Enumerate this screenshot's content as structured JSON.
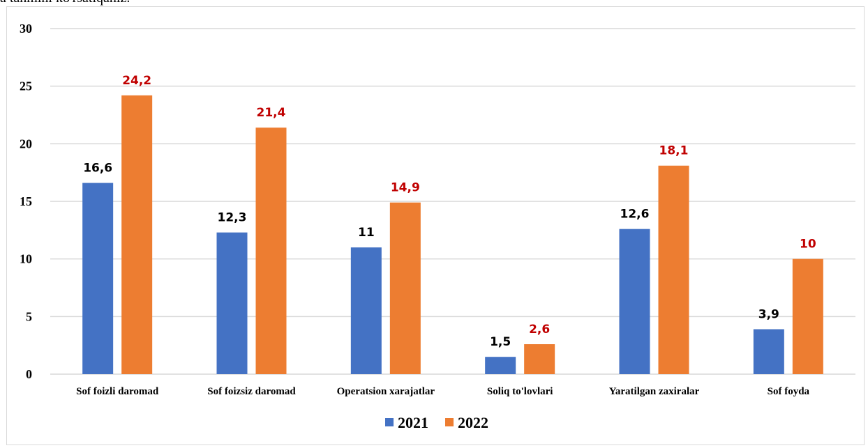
{
  "page": {
    "top_text": "a tanmini ko'rsatiqaniz."
  },
  "chart_data": {
    "type": "bar",
    "categories": [
      "Sof foizli daromad",
      "Sof foizsiz daromad",
      "Operatsion xarajatlar",
      "Soliq to'lovlari",
      "Yaratilgan zaxiralar",
      "Sof foyda"
    ],
    "series": [
      {
        "name": "2021",
        "values": [
          16.6,
          12.3,
          11,
          1.5,
          12.6,
          3.9
        ],
        "labels": [
          "16,6",
          "12,3",
          "11",
          "1,5",
          "12,6",
          "3,9"
        ],
        "color": "#4472c4",
        "label_color": "#000000"
      },
      {
        "name": "2022",
        "values": [
          24.2,
          21.4,
          14.9,
          2.6,
          18.1,
          10
        ],
        "labels": [
          "24,2",
          "21,4",
          "14,9",
          "2,6",
          "18,1",
          "10"
        ],
        "color": "#ed7d31",
        "label_color": "#c00000"
      }
    ],
    "ylim": [
      0,
      30
    ],
    "yticks": [
      0,
      5,
      10,
      15,
      20,
      25,
      30
    ],
    "grid": true,
    "legend": "bottom",
    "title": "",
    "xlabel": "",
    "ylabel": ""
  }
}
